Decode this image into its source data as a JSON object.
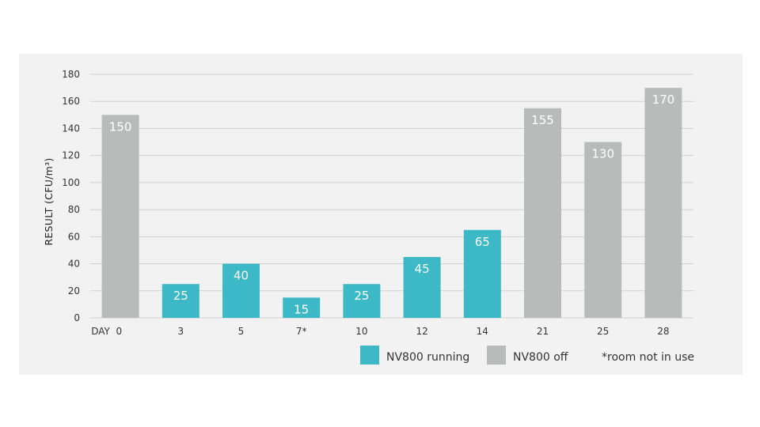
{
  "chart_data": {
    "type": "bar",
    "categories": [
      "DAY  0",
      "3",
      "5",
      "7*",
      "10",
      "12",
      "14",
      "21",
      "25",
      "28"
    ],
    "values": [
      150,
      25,
      40,
      15,
      25,
      45,
      65,
      155,
      130,
      170
    ],
    "data_labels": [
      "150",
      "25",
      "40",
      "15",
      "25",
      "45",
      "65",
      "155",
      "130",
      "170"
    ],
    "bar_series": [
      "off",
      "running",
      "running",
      "running",
      "running",
      "running",
      "running",
      "off",
      "off",
      "off"
    ],
    "series": [
      {
        "key": "running",
        "name": "NV800 running",
        "color": "#3db8c6"
      },
      {
        "key": "off",
        "name": "NV800 off",
        "color": "#b9bbbb"
      }
    ],
    "ylabel": "RESULT (CFU/m³)",
    "ylim": [
      0,
      180
    ],
    "yticks": [
      0,
      20,
      40,
      60,
      80,
      100,
      120,
      140,
      160,
      180
    ],
    "grid": true,
    "legend_position": "bottom-right",
    "footnote": "*room not in use",
    "colors": {
      "panel": "#f2f2f2",
      "grid": "#d0d0d0",
      "label": "#ffffff"
    }
  }
}
